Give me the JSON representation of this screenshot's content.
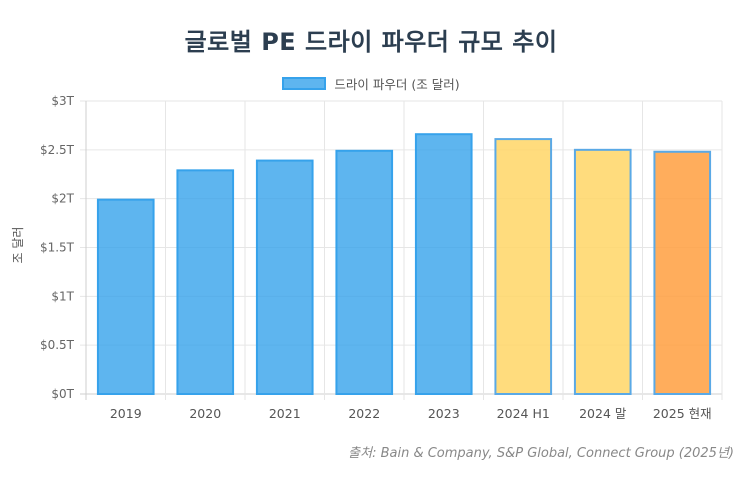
{
  "title": "글로벌 PE 드라이 파우더 규모 추이",
  "source": "출처: Bain & Company, S&P Global, Connect Group (2025년)",
  "colors": {
    "blue_fill": "rgba(54,162,235,0.8)",
    "blue_border": "#36a2eb",
    "yellow_fill": "rgba(255,214,102,0.85)",
    "yellow_border": "#5aa9e6",
    "orange_fill": "rgba(255,159,64,0.85)",
    "orange_border": "#5aa9e6"
  },
  "chart_data": {
    "type": "bar",
    "categories": [
      "2019",
      "2020",
      "2021",
      "2022",
      "2023",
      "2024 H1",
      "2024 말",
      "2025 현재"
    ],
    "series": [
      {
        "name": "드라이 파우더 (조 달러)",
        "values": [
          1.99,
          2.29,
          2.39,
          2.49,
          2.66,
          2.61,
          2.5,
          2.48
        ]
      }
    ],
    "bar_color_keys": [
      "blue",
      "blue",
      "blue",
      "blue",
      "blue",
      "yellow",
      "yellow",
      "orange"
    ],
    "ylabel": "조 달러",
    "xlabel": "",
    "ylim": [
      0,
      3
    ],
    "yticks": [
      0,
      0.5,
      1,
      1.5,
      2,
      2.5,
      3
    ],
    "ytick_labels": [
      "$0T",
      "$0.5T",
      "$1T",
      "$1.5T",
      "$2T",
      "$2.5T",
      "$3T"
    ],
    "grid": true,
    "legend_position": "top"
  }
}
